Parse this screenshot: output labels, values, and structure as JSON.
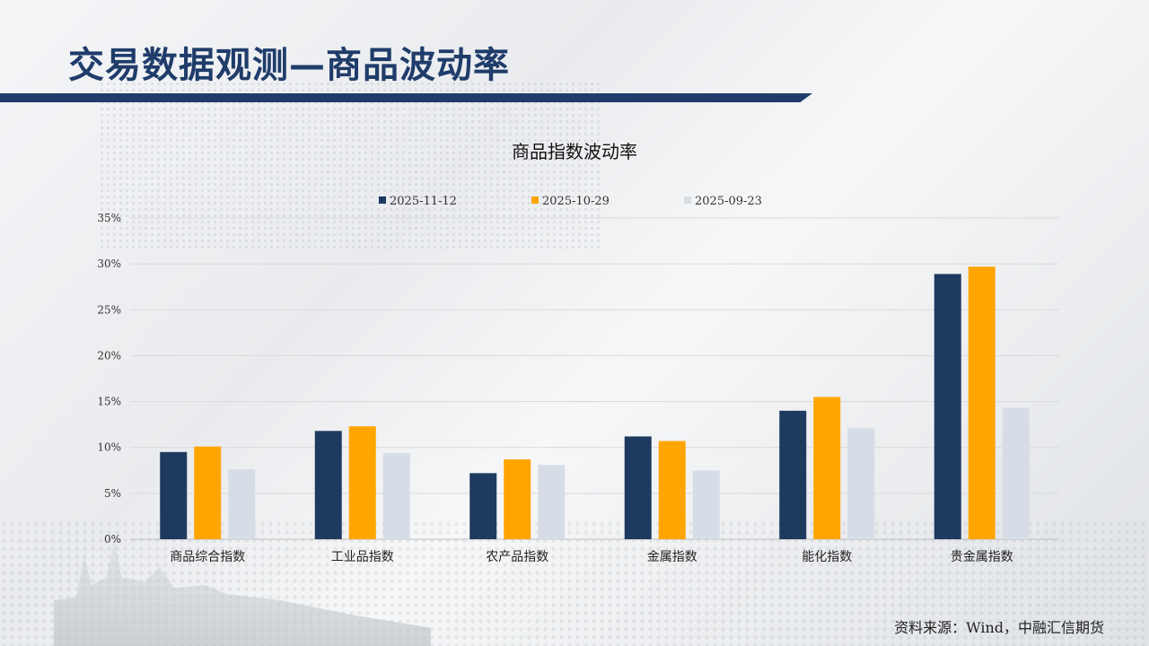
{
  "page": {
    "title": "交易数据观测—商品波动率",
    "source": "资料来源：Wind，中融汇信期货"
  },
  "colors": {
    "title": "#1f3c6a",
    "series": [
      "#1e3a5f",
      "#ffa500",
      "#d6dde6"
    ],
    "grid": "#d9d9d9"
  },
  "chart_data": {
    "type": "bar",
    "title": "商品指数波动率",
    "categories": [
      "商品综合指数",
      "工业品指数",
      "农产品指数",
      "金属指数",
      "能化指数",
      "贵金属指数"
    ],
    "series": [
      {
        "name": "2025-11-12",
        "values": [
          9.5,
          11.8,
          7.2,
          11.2,
          14.0,
          28.9
        ]
      },
      {
        "name": "2025-10-29",
        "values": [
          10.1,
          12.3,
          8.7,
          10.7,
          15.5,
          29.7
        ]
      },
      {
        "name": "2025-09-23",
        "values": [
          7.6,
          9.4,
          8.1,
          7.5,
          12.1,
          14.3
        ]
      }
    ],
    "ylim": [
      0,
      35
    ],
    "yticks": [
      "0%",
      "5%",
      "10%",
      "15%",
      "20%",
      "25%",
      "30%",
      "35%"
    ],
    "grid": true,
    "legend_position": "top"
  }
}
